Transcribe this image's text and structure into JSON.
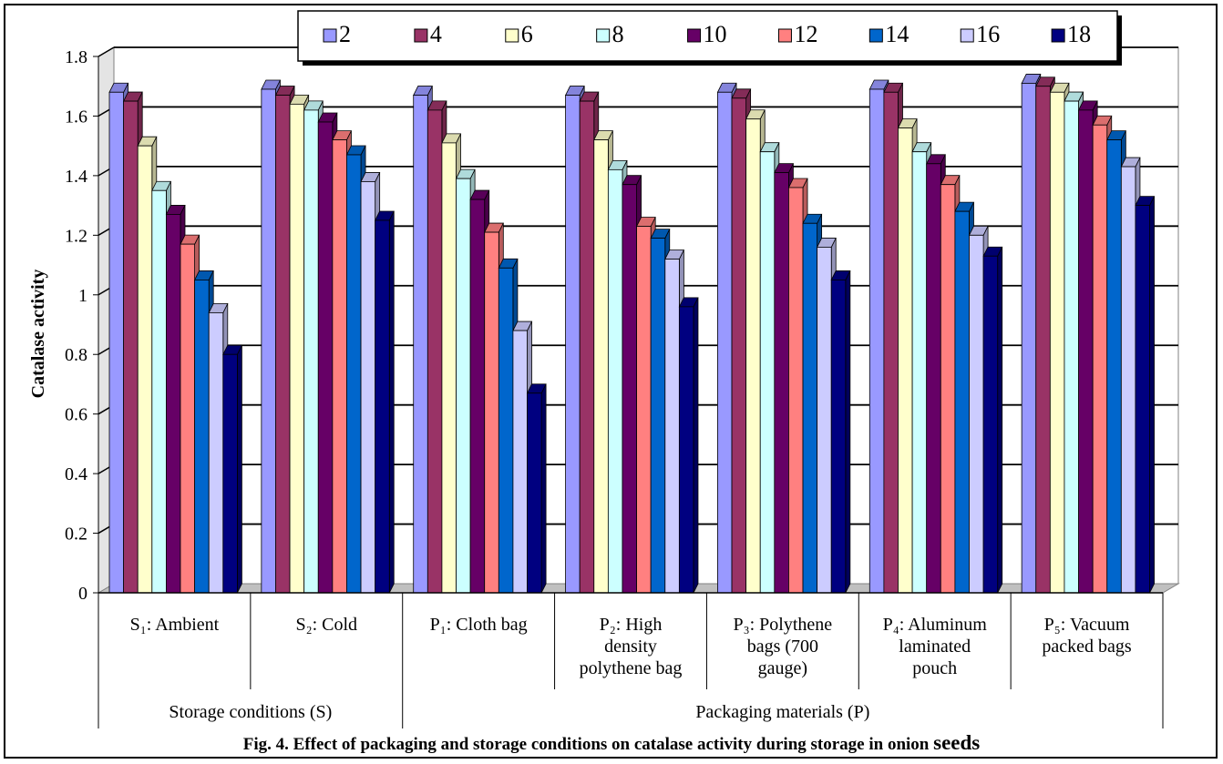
{
  "chart_data": {
    "type": "bar",
    "title": "",
    "ylabel": "Catalase  activity",
    "xlabel": "",
    "ylim": [
      0,
      1.8
    ],
    "yticks": [
      "0",
      "0.2",
      "0.4",
      "0.6",
      "0.8",
      "1",
      "1.2",
      "1.4",
      "1.6",
      "1.8"
    ],
    "grid": true,
    "legend_position": "top",
    "style": "3d-clustered-columns",
    "groups": [
      {
        "label": "Storage conditions (S)",
        "span": 2
      },
      {
        "label": "Packaging materials (P)",
        "span": 5
      }
    ],
    "categories": [
      "S₁: Ambient",
      "S₂: Cold",
      "P₁: Cloth bag",
      "P₂: High density polythene bag",
      "P₃: Polythene bags (700 gauge)",
      "P₄: Aluminum laminated pouch",
      "P₅: Vacuum packed bags"
    ],
    "category_lines": [
      [
        "S₁: Ambient"
      ],
      [
        "S₂: Cold"
      ],
      [
        "P₁: Cloth bag"
      ],
      [
        "P₂: High",
        "density",
        "polythene bag"
      ],
      [
        "P₃: Polythene",
        "bags (700",
        "gauge)"
      ],
      [
        "P₄: Aluminum",
        "laminated",
        "pouch"
      ],
      [
        "P₅: Vacuum",
        "packed bags"
      ]
    ],
    "series": [
      {
        "name": "2",
        "color": "#9999ff",
        "values": [
          1.68,
          1.69,
          1.67,
          1.67,
          1.68,
          1.69,
          1.71
        ]
      },
      {
        "name": "4",
        "color": "#993366",
        "values": [
          1.65,
          1.67,
          1.62,
          1.65,
          1.66,
          1.68,
          1.7
        ]
      },
      {
        "name": "6",
        "color": "#ffffcc",
        "values": [
          1.5,
          1.64,
          1.51,
          1.52,
          1.59,
          1.56,
          1.68
        ]
      },
      {
        "name": "8",
        "color": "#ccffff",
        "values": [
          1.35,
          1.62,
          1.39,
          1.42,
          1.48,
          1.48,
          1.65
        ]
      },
      {
        "name": "10",
        "color": "#660066",
        "values": [
          1.27,
          1.58,
          1.32,
          1.37,
          1.41,
          1.44,
          1.62
        ]
      },
      {
        "name": "12",
        "color": "#ff8080",
        "values": [
          1.17,
          1.52,
          1.21,
          1.23,
          1.36,
          1.37,
          1.57
        ]
      },
      {
        "name": "14",
        "color": "#0066cc",
        "values": [
          1.05,
          1.47,
          1.09,
          1.19,
          1.24,
          1.28,
          1.52
        ]
      },
      {
        "name": "16",
        "color": "#ccccff",
        "values": [
          0.94,
          1.38,
          0.88,
          1.12,
          1.16,
          1.2,
          1.43
        ]
      },
      {
        "name": "18",
        "color": "#000080",
        "values": [
          0.8,
          1.25,
          0.67,
          0.96,
          1.05,
          1.13,
          1.3
        ]
      }
    ]
  },
  "caption": {
    "main": "Fig. 4. Effect of packaging and storage conditions on catalase activity during storage in onion ",
    "last_word": "seeds"
  }
}
